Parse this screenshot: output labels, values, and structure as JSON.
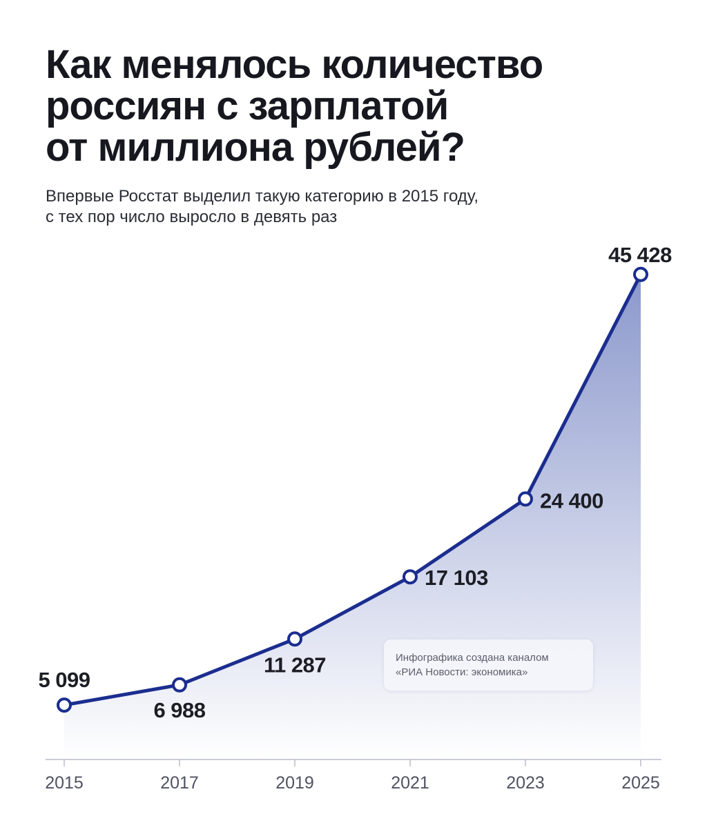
{
  "header": {
    "title_lines": [
      "Как менялось количество",
      "россиян с зарплатой",
      "от миллиона рублей?"
    ],
    "subtitle_lines": [
      "Впервые Росстат выделил такую категорию в 2015 году,",
      "с тех пор число выросло в девять раз"
    ]
  },
  "note": {
    "lines": [
      "Инфографика создана каналом",
      "«РИА Новости: экономика»"
    ]
  },
  "colors": {
    "line": "#1b2d8f",
    "area_top": "#8b98cc",
    "area_bottom": "#ffffff",
    "marker_fill": "#ffffff",
    "label": "#1d1e25",
    "axis": "#b9bccb",
    "tick_label": "#4f5262"
  },
  "chart_data": {
    "type": "area",
    "x": [
      "2015",
      "2017",
      "2019",
      "2021",
      "2023",
      "2025"
    ],
    "values": [
      5099,
      6988,
      11287,
      17103,
      24400,
      45428
    ],
    "data_labels": [
      "5 099",
      "6 988",
      "11 287",
      "17 103",
      "24 400",
      "45 428"
    ],
    "xlabel": "",
    "ylabel": "",
    "grid": false,
    "legend": "none"
  }
}
